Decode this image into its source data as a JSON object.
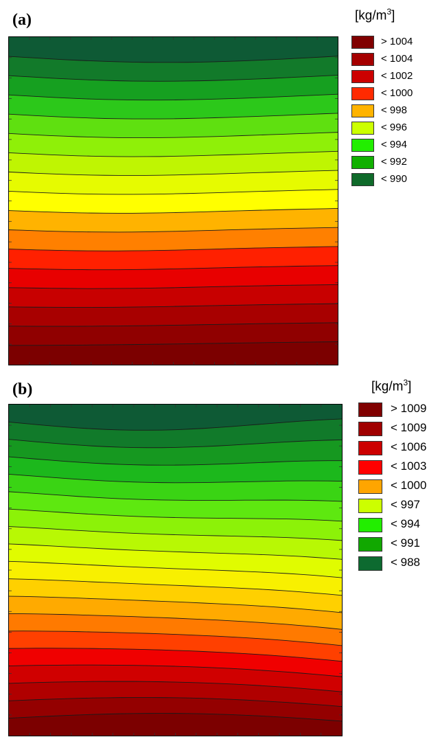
{
  "chart_data": [
    {
      "type": "heatmap",
      "panel_label": "(a)",
      "unit_text": "[kg/m",
      "unit_sup": "3",
      "unit_close": "]",
      "legend_placement": "right",
      "legend": [
        {
          "label": "> 1004",
          "color": "#800000"
        },
        {
          "label": "< 1004",
          "color": "#a50000"
        },
        {
          "label": "< 1002",
          "color": "#cc0000"
        },
        {
          "label": "< 1000",
          "color": "#ff2a00"
        },
        {
          "label": "< 998",
          "color": "#ffb300"
        },
        {
          "label": "< 996",
          "color": "#ccff00"
        },
        {
          "label": "< 994",
          "color": "#22ee00"
        },
        {
          "label": "< 992",
          "color": "#11b000"
        },
        {
          "label": "< 990",
          "color": "#0f6a2a"
        }
      ],
      "bands_top_to_bottom": [
        "#0e5a35",
        "#127a2a",
        "#16a020",
        "#2cc81a",
        "#5fe010",
        "#8ff008",
        "#bff502",
        "#e6fb00",
        "#ffff00",
        "#ffb300",
        "#ff8000",
        "#ff2000",
        "#e80000",
        "#c80000",
        "#a80000",
        "#900000",
        "#7c0000"
      ]
    },
    {
      "type": "heatmap",
      "panel_label": "(b)",
      "unit_text": "[kg/m",
      "unit_sup": "3",
      "unit_close": "]",
      "legend_placement": "right",
      "legend": [
        {
          "label": "> 1009",
          "color": "#800000"
        },
        {
          "label": "< 1009",
          "color": "#a00000"
        },
        {
          "label": "< 1006",
          "color": "#cc0000"
        },
        {
          "label": "< 1003",
          "color": "#ff0000"
        },
        {
          "label": "< 1000",
          "color": "#ffa500"
        },
        {
          "label": "< 997",
          "color": "#ccff00"
        },
        {
          "label": "< 994",
          "color": "#22ee00"
        },
        {
          "label": "< 991",
          "color": "#11a800"
        },
        {
          "label": "< 988",
          "color": "#0d6a30"
        }
      ],
      "bands_top_to_bottom": [
        "#0e5a35",
        "#117a2a",
        "#169820",
        "#1cb81c",
        "#3ad414",
        "#5ee810",
        "#8cf208",
        "#b8f804",
        "#e0fc00",
        "#f8f000",
        "#ffd000",
        "#ffaa00",
        "#ff7a00",
        "#ff4000",
        "#f00000",
        "#d00000",
        "#b00000",
        "#940000",
        "#7c0000"
      ]
    }
  ]
}
